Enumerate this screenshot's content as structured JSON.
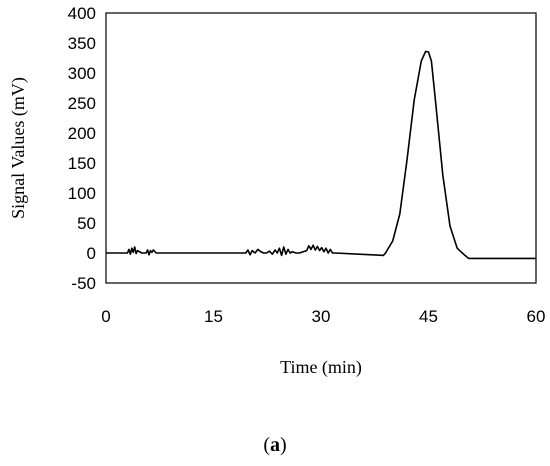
{
  "chart_data": {
    "type": "line",
    "xlabel": "Time (min)",
    "ylabel": "Signal Values (mV)",
    "xlim": [
      0,
      60
    ],
    "ylim": [
      -50,
      400
    ],
    "x_ticks": [
      "0",
      "15",
      "30",
      "45",
      "60"
    ],
    "y_ticks": [
      "-50",
      "0",
      "50",
      "100",
      "150",
      "200",
      "250",
      "300",
      "350",
      "400"
    ],
    "grid": false,
    "legend": "none",
    "series": [
      {
        "color": "#000000",
        "x": [
          0,
          3.0,
          3.2,
          3.4,
          3.6,
          3.8,
          4.0,
          4.2,
          4.4,
          5.0,
          5.6,
          5.8,
          6.0,
          6.2,
          6.4,
          6.6,
          7.0,
          19.5,
          19.8,
          20.1,
          20.4,
          20.8,
          21.2,
          21.6,
          22.0,
          22.4,
          22.8,
          23.2,
          23.6,
          23.9,
          24.2,
          24.5,
          24.8,
          25.1,
          25.4,
          25.7,
          26.0,
          26.5,
          27.0,
          27.5,
          28.0,
          28.3,
          28.6,
          28.9,
          29.2,
          29.5,
          29.8,
          30.1,
          30.4,
          30.7,
          31.0,
          31.3,
          31.6,
          32.0,
          38.7,
          39.0,
          40.0,
          41.0,
          42.0,
          43.0,
          44.0,
          44.6,
          45.0,
          45.4,
          46.0,
          47.0,
          48.0,
          49.0,
          50.0,
          50.6,
          51.2,
          60
        ],
        "y": [
          0,
          0,
          6,
          -2,
          8,
          1,
          10,
          -1,
          4,
          0,
          0,
          5,
          -3,
          4,
          1,
          5,
          0,
          0,
          5,
          -3,
          4,
          0,
          6,
          2,
          0,
          0,
          3,
          -2,
          5,
          0,
          8,
          -4,
          10,
          -2,
          6,
          0,
          2,
          0,
          0,
          2,
          4,
          12,
          6,
          13,
          5,
          11,
          4,
          9,
          2,
          8,
          0,
          6,
          0,
          0,
          -4,
          0,
          20,
          65,
          155,
          255,
          320,
          336,
          335,
          320,
          250,
          130,
          45,
          8,
          -3,
          -9,
          -9,
          -9
        ]
      }
    ]
  },
  "caption": {
    "open": "(",
    "letter": "a",
    "close": ")"
  }
}
